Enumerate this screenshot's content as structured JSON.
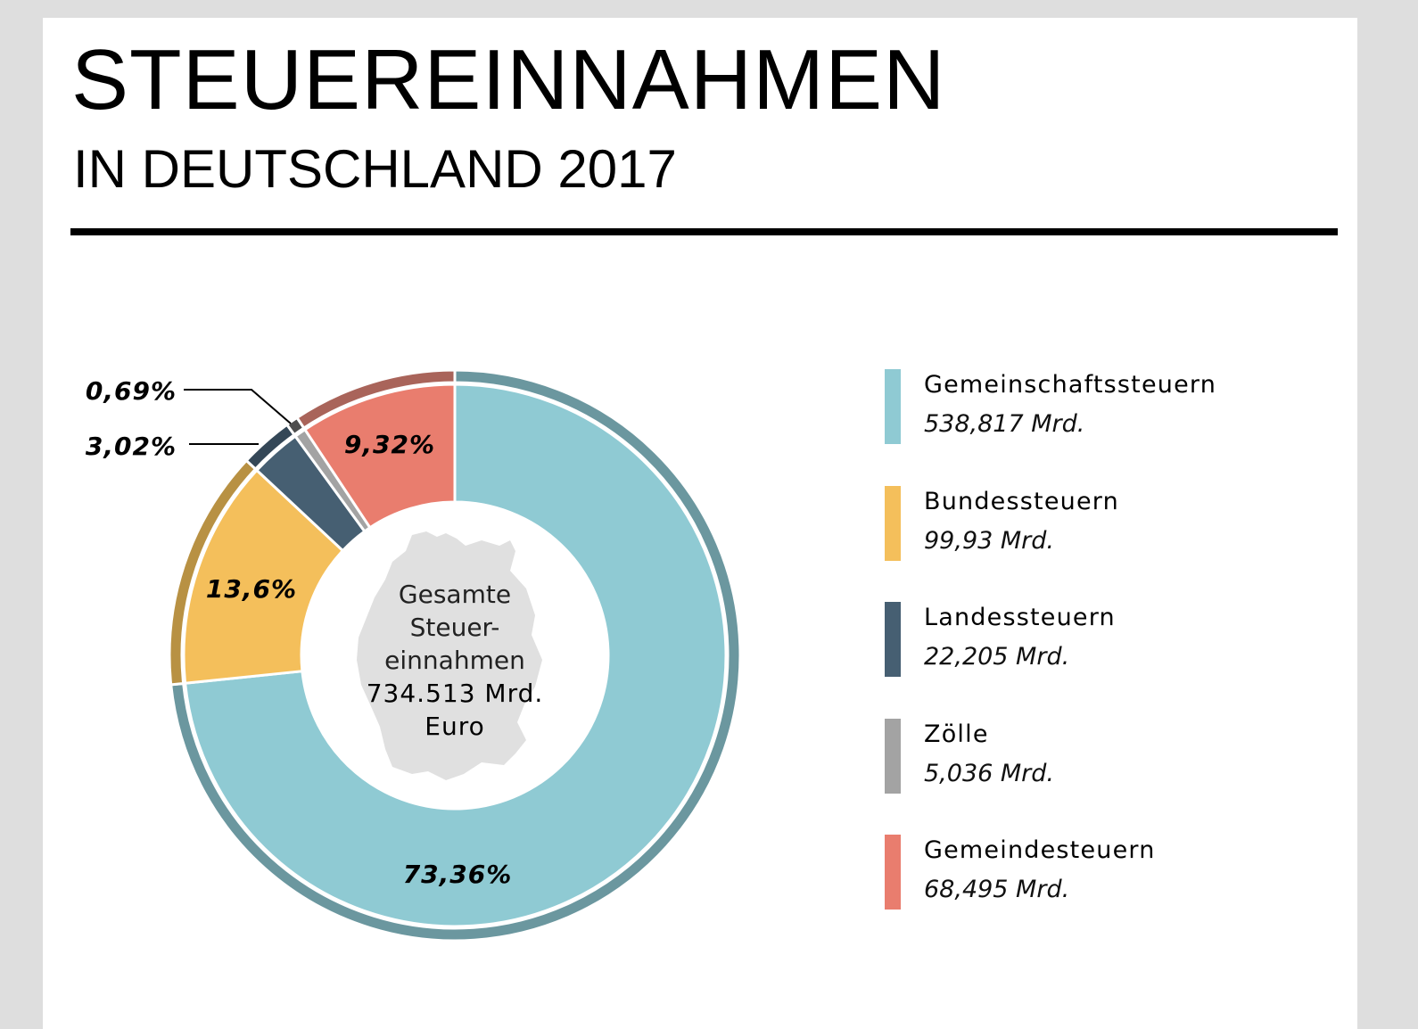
{
  "title": "STEUEREINNAHMEN",
  "subtitle": "IN DEUTSCHLAND 2017",
  "center": {
    "line1": "Gesamte",
    "line2": "Steuer-",
    "line3": "einnahmen",
    "total": "734.513 Mrd.",
    "unit": "Euro"
  },
  "chart_data": {
    "type": "pie",
    "variant": "donut",
    "title": "STEUEREINNAHMEN",
    "subtitle": "IN DEUTSCHLAND 2017",
    "total_label": "734.513 Mrd. Euro",
    "categories": [
      "Gemeinschaftssteuern",
      "Bundessteuern",
      "Landessteuern",
      "Zölle",
      "Gemeindesteuern"
    ],
    "values": [
      538.817,
      99.93,
      22.205,
      5.036,
      68.495
    ],
    "value_labels": [
      "538,817 Mrd.",
      "99,93 Mrd.",
      "22,205 Mrd.",
      "5,036 Mrd.",
      "68,495 Mrd."
    ],
    "percent_labels": [
      "73,36%",
      "13,6%",
      "3,02%",
      "0,69%",
      "9,32%"
    ],
    "percents": [
      73.36,
      13.6,
      3.02,
      0.69,
      9.32
    ],
    "colors": [
      "#8fcad3",
      "#f4bf5b",
      "#465f72",
      "#a3a3a3",
      "#e97d6e"
    ],
    "ring_colors": [
      "#6b979f",
      "#b89143",
      "#344757",
      "#4d4d4d",
      "#a9645a"
    ],
    "legend_position": "right"
  }
}
